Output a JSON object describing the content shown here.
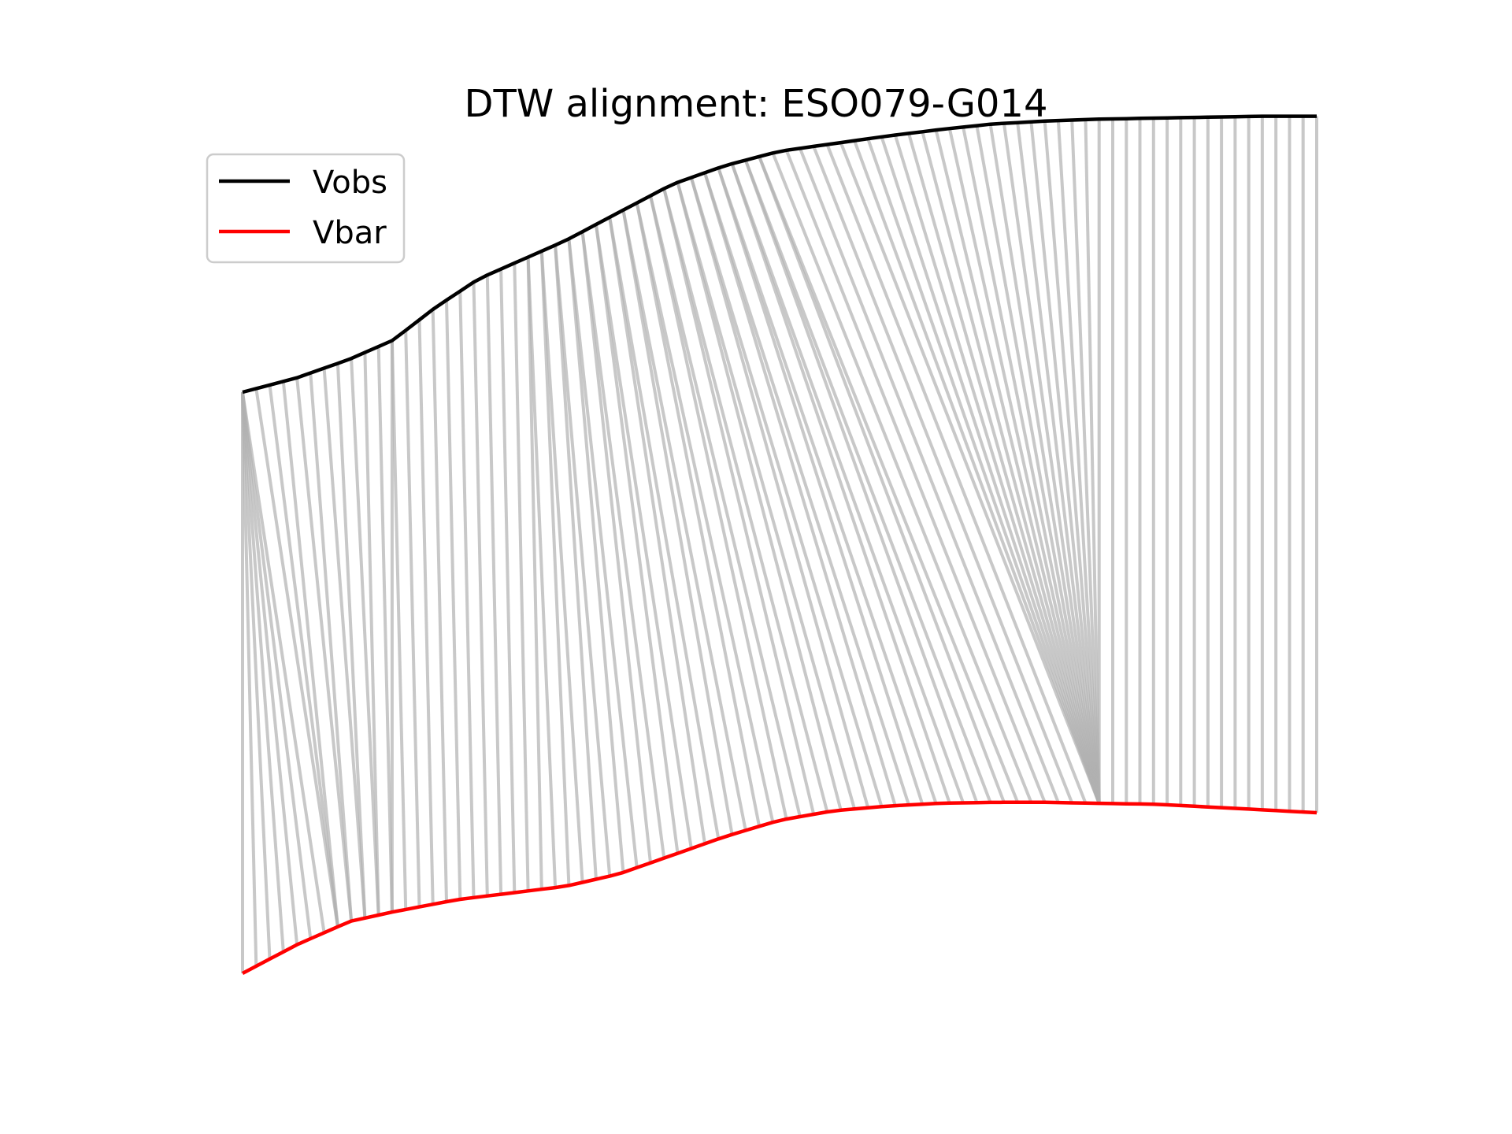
{
  "chart_data": {
    "type": "line",
    "title": "DTW alignment: ESO079-G014",
    "xlabel": "",
    "ylabel": "",
    "axes_visible": false,
    "grid": false,
    "legend_position": "top-left",
    "colors": {
      "Vobs": "#000000",
      "Vbar": "#ff0000",
      "connector": "#b0b0b0"
    },
    "legend": [
      {
        "label": "Vobs",
        "color": "#000000"
      },
      {
        "label": "Vbar",
        "color": "#ff0000"
      }
    ],
    "ylim": [
      0,
      1
    ],
    "series": [
      {
        "name": "Vobs",
        "x": [
          0,
          0.05,
          0.1,
          0.14,
          0.18,
          0.22,
          0.25,
          0.3,
          0.35,
          0.4,
          0.45,
          0.5,
          0.55,
          0.6,
          0.65,
          0.7,
          0.75,
          0.8,
          0.85,
          0.9,
          0.95,
          1.0
        ],
        "values": [
          0.685,
          0.7,
          0.72,
          0.74,
          0.775,
          0.805,
          0.82,
          0.845,
          0.875,
          0.905,
          0.925,
          0.94,
          0.948,
          0.956,
          0.963,
          0.969,
          0.972,
          0.974,
          0.975,
          0.976,
          0.977,
          0.977
        ]
      },
      {
        "name": "Vbar",
        "x": [
          0,
          0.05,
          0.1,
          0.14,
          0.2,
          0.25,
          0.3,
          0.35,
          0.4,
          0.45,
          0.5,
          0.55,
          0.6,
          0.65,
          0.7,
          0.75,
          0.79,
          0.85,
          0.9,
          0.95,
          1.0
        ],
        "values": [
          0.07,
          0.1,
          0.125,
          0.135,
          0.148,
          0.155,
          0.162,
          0.175,
          0.195,
          0.215,
          0.232,
          0.242,
          0.247,
          0.25,
          0.251,
          0.251,
          0.25,
          0.249,
          0.246,
          0.243,
          0.24
        ]
      }
    ],
    "alignment": {
      "n_points": 80,
      "pairs": [
        [
          0,
          0
        ],
        [
          0,
          1
        ],
        [
          0,
          2
        ],
        [
          0,
          3
        ],
        [
          0,
          4
        ],
        [
          0,
          5
        ],
        [
          0,
          6
        ],
        [
          1,
          7
        ],
        [
          2,
          7
        ],
        [
          3,
          7
        ],
        [
          4,
          8
        ],
        [
          5,
          8
        ],
        [
          6,
          9
        ],
        [
          7,
          9
        ],
        [
          8,
          10
        ],
        [
          9,
          10
        ],
        [
          10,
          11
        ],
        [
          11,
          11
        ],
        [
          11,
          12
        ],
        [
          12,
          13
        ],
        [
          13,
          14
        ],
        [
          14,
          15
        ],
        [
          15,
          16
        ],
        [
          16,
          17
        ],
        [
          17,
          18
        ],
        [
          18,
          19
        ],
        [
          19,
          20
        ],
        [
          20,
          21
        ],
        [
          21,
          22
        ],
        [
          21,
          23
        ],
        [
          22,
          24
        ],
        [
          22,
          25
        ],
        [
          23,
          26
        ],
        [
          23,
          27
        ],
        [
          24,
          28
        ],
        [
          24,
          29
        ],
        [
          25,
          30
        ],
        [
          25,
          31
        ],
        [
          26,
          32
        ],
        [
          26,
          33
        ],
        [
          27,
          34
        ],
        [
          27,
          35
        ],
        [
          28,
          36
        ],
        [
          28,
          37
        ],
        [
          29,
          38
        ],
        [
          29,
          39
        ],
        [
          30,
          40
        ],
        [
          30,
          41
        ],
        [
          31,
          42
        ],
        [
          31,
          43
        ],
        [
          32,
          44
        ],
        [
          32,
          45
        ],
        [
          33,
          46
        ],
        [
          33,
          47
        ],
        [
          34,
          48
        ],
        [
          34,
          49
        ],
        [
          35,
          50
        ],
        [
          35,
          51
        ],
        [
          36,
          52
        ],
        [
          36,
          53
        ],
        [
          37,
          54
        ],
        [
          37,
          55
        ],
        [
          38,
          56
        ],
        [
          38,
          57
        ],
        [
          39,
          58
        ],
        [
          40,
          59
        ],
        [
          41,
          60
        ],
        [
          42,
          61
        ],
        [
          43,
          62
        ],
        [
          44,
          63
        ],
        [
          45,
          63
        ],
        [
          46,
          63
        ],
        [
          47,
          63
        ],
        [
          48,
          63
        ],
        [
          49,
          63
        ],
        [
          50,
          63
        ],
        [
          51,
          63
        ],
        [
          52,
          63
        ],
        [
          53,
          63
        ],
        [
          54,
          63
        ],
        [
          55,
          63
        ],
        [
          56,
          63
        ],
        [
          57,
          63
        ],
        [
          58,
          63
        ],
        [
          59,
          63
        ],
        [
          60,
          63
        ],
        [
          61,
          63
        ],
        [
          62,
          63
        ],
        [
          63,
          63
        ],
        [
          64,
          64
        ],
        [
          65,
          65
        ],
        [
          66,
          66
        ],
        [
          67,
          67
        ],
        [
          68,
          68
        ],
        [
          69,
          69
        ],
        [
          70,
          70
        ],
        [
          71,
          71
        ],
        [
          72,
          72
        ],
        [
          73,
          73
        ],
        [
          74,
          74
        ],
        [
          75,
          75
        ],
        [
          76,
          76
        ],
        [
          77,
          77
        ],
        [
          78,
          78
        ],
        [
          79,
          79
        ]
      ]
    }
  }
}
